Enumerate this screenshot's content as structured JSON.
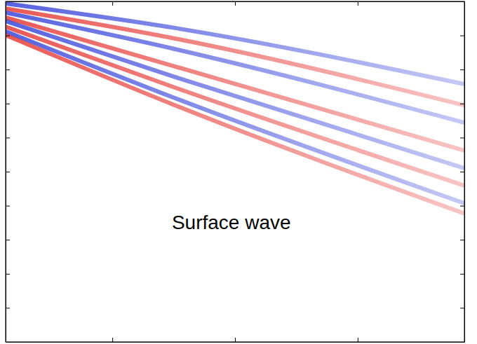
{
  "chart_data": {
    "type": "line",
    "x": [
      0.13,
      1.51,
      3.87
    ],
    "series": [
      {
        "color": "#1f2fd6",
        "values": [
          0.06,
          0.78,
          2.43
        ]
      },
      {
        "color": "#e3211c",
        "values": [
          0.21,
          1.09,
          3.05
        ]
      },
      {
        "color": "#1f2fd6",
        "values": [
          0.33,
          1.4,
          3.56
        ]
      },
      {
        "color": "#e3211c",
        "values": [
          0.47,
          1.91,
          4.38
        ]
      },
      {
        "color": "#1f2fd6",
        "values": [
          0.58,
          2.22,
          4.9
        ]
      },
      {
        "color": "#e3211c",
        "values": [
          0.74,
          2.53,
          5.41
        ]
      },
      {
        "color": "#1f2fd6",
        "values": [
          0.88,
          2.84,
          5.93
        ]
      },
      {
        "color": "#e3211c",
        "values": [
          0.99,
          3.05,
          6.23
        ]
      }
    ],
    "xlim": [
      0.13,
      3.87
    ],
    "xticks": [
      1,
      2,
      3
    ],
    "ylim": [
      0,
      10
    ],
    "yticks": [
      1,
      2,
      3,
      4,
      5,
      6,
      7,
      8,
      9
    ],
    "tick_labels": false,
    "annotations": [
      {
        "text": "Surface wave",
        "x": 1.97,
        "y": 6.54
      }
    ]
  }
}
